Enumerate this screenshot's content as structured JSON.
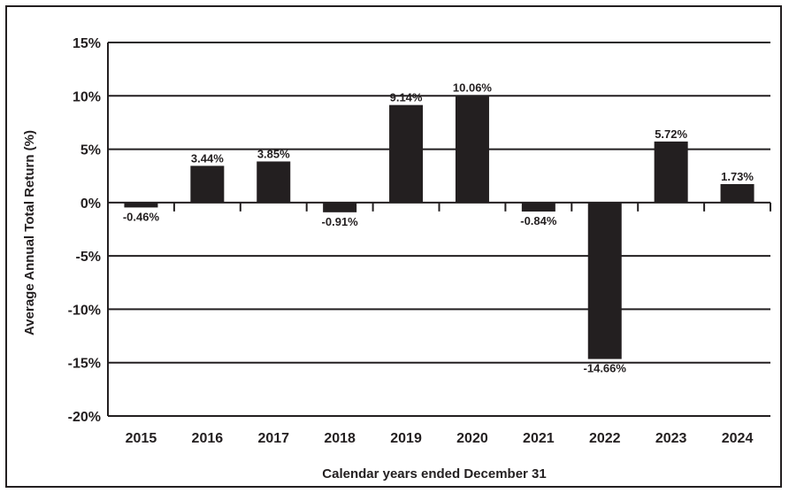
{
  "chart_data": {
    "type": "bar",
    "title": "",
    "xlabel": "Calendar years ended December 31",
    "ylabel": "Average Annual Total Return (%)",
    "categories": [
      "2015",
      "2016",
      "2017",
      "2018",
      "2019",
      "2020",
      "2021",
      "2022",
      "2023",
      "2024"
    ],
    "values": [
      -0.46,
      3.44,
      3.85,
      -0.91,
      9.14,
      10.06,
      -0.84,
      -14.66,
      5.72,
      1.73
    ],
    "value_labels": [
      "-0.46%",
      "3.44%",
      "3.85%",
      "-0.91%",
      "9.14%",
      "10.06%",
      "-0.84%",
      "-14.66%",
      "5.72%",
      "1.73%"
    ],
    "ylim": [
      -20,
      15
    ],
    "yticks": [
      15,
      10,
      5,
      0,
      -5,
      -10,
      -15,
      -20
    ],
    "ytick_labels": [
      "15%",
      "10%",
      "5%",
      "0%",
      "-5%",
      "-10%",
      "-15%",
      "-20%"
    ],
    "grid": true,
    "legend": "none",
    "bar_color": "#231f20"
  }
}
